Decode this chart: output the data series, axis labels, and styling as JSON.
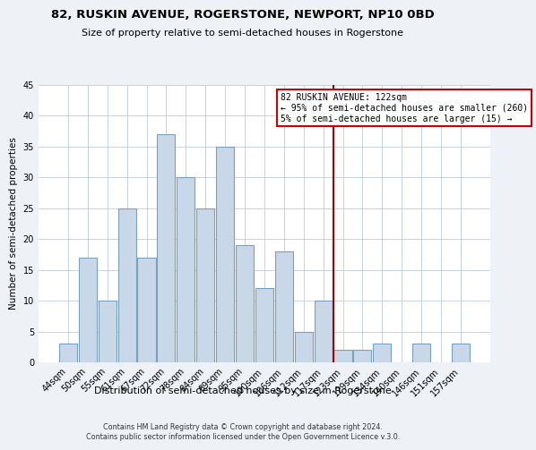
{
  "title": "82, RUSKIN AVENUE, ROGERSTONE, NEWPORT, NP10 0BD",
  "subtitle": "Size of property relative to semi-detached houses in Rogerstone",
  "xlabel": "Distribution of semi-detached houses by size in Rogerstone",
  "ylabel": "Number of semi-detached properties",
  "bar_labels": [
    "44sqm",
    "50sqm",
    "55sqm",
    "61sqm",
    "67sqm",
    "72sqm",
    "78sqm",
    "84sqm",
    "89sqm",
    "95sqm",
    "100sqm",
    "106sqm",
    "112sqm",
    "117sqm",
    "123sqm",
    "129sqm",
    "134sqm",
    "140sqm",
    "146sqm",
    "151sqm",
    "157sqm"
  ],
  "bar_values": [
    3,
    17,
    10,
    25,
    17,
    37,
    30,
    25,
    35,
    19,
    12,
    18,
    5,
    10,
    2,
    2,
    3,
    0,
    3,
    0,
    3
  ],
  "bar_color": "#c8d8e8",
  "bar_edge_color": "#7aa0c0",
  "ylim": [
    0,
    45
  ],
  "yticks": [
    0,
    5,
    10,
    15,
    20,
    25,
    30,
    35,
    40,
    45
  ],
  "vline_color": "#aa0000",
  "annotation_title": "82 RUSKIN AVENUE: 122sqm",
  "annotation_line1": "← 95% of semi-detached houses are smaller (260)",
  "annotation_line2": "5% of semi-detached houses are larger (15) →",
  "annotation_box_color": "#cc0000",
  "footer1": "Contains HM Land Registry data © Crown copyright and database right 2024.",
  "footer2": "Contains public sector information licensed under the Open Government Licence v.3.0.",
  "bg_color": "#eef2f7",
  "plot_bg_color": "#ffffff"
}
